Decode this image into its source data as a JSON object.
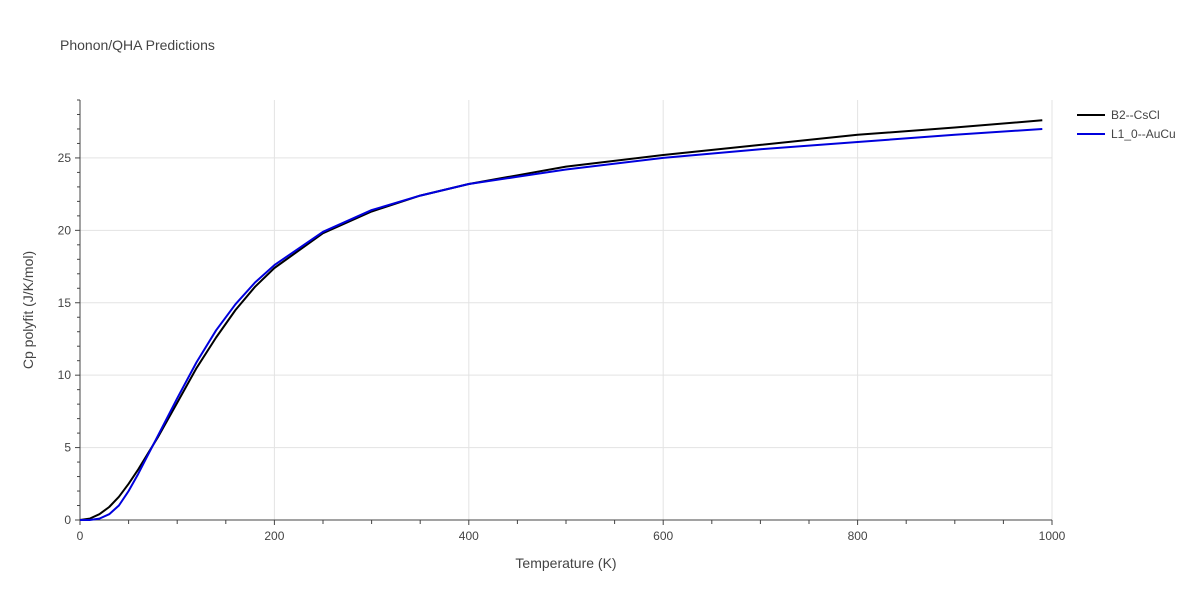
{
  "chart_data": {
    "type": "line",
    "title": "Phonon/QHA Predictions",
    "xlabel": "Temperature (K)",
    "ylabel": "Cp polyfit (J/K/mol)",
    "xlim": [
      0,
      1000
    ],
    "ylim": [
      0,
      29
    ],
    "xticks": [
      0,
      200,
      400,
      600,
      800,
      1000
    ],
    "yticks": [
      0,
      5,
      10,
      15,
      20,
      25
    ],
    "grid": true,
    "legend_position": "top-right",
    "series": [
      {
        "name": "B2--CsCl",
        "color": "#000000",
        "x": [
          0,
          10,
          20,
          30,
          40,
          50,
          60,
          70,
          80,
          100,
          120,
          140,
          160,
          180,
          200,
          250,
          300,
          350,
          400,
          450,
          500,
          600,
          700,
          800,
          900,
          990
        ],
        "y": [
          0,
          0.1,
          0.4,
          0.9,
          1.6,
          2.5,
          3.5,
          4.6,
          5.7,
          8.1,
          10.5,
          12.6,
          14.5,
          16.1,
          17.4,
          19.8,
          21.3,
          22.4,
          23.2,
          23.8,
          24.4,
          25.2,
          25.9,
          26.6,
          27.1,
          27.6
        ]
      },
      {
        "name": "L1_0--AuCu",
        "color": "#0000dd",
        "x": [
          0,
          10,
          20,
          30,
          40,
          50,
          60,
          70,
          80,
          100,
          120,
          140,
          160,
          180,
          200,
          250,
          300,
          350,
          400,
          450,
          500,
          600,
          700,
          800,
          900,
          990
        ],
        "y": [
          0,
          0,
          0.1,
          0.4,
          1.0,
          2.0,
          3.2,
          4.5,
          5.8,
          8.4,
          10.9,
          13.1,
          14.9,
          16.4,
          17.6,
          19.9,
          21.4,
          22.4,
          23.2,
          23.7,
          24.2,
          25.0,
          25.6,
          26.1,
          26.6,
          27.0
        ]
      }
    ]
  }
}
